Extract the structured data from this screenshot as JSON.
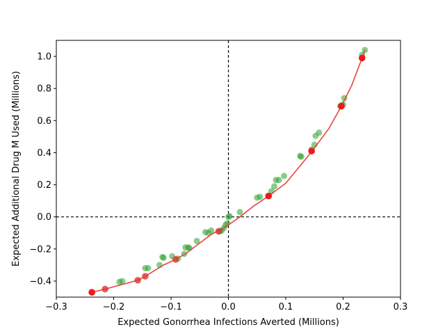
{
  "chart_data": {
    "type": "scatter",
    "title": "",
    "xlabel": "Expected Gonorrhea Infections Averted (Millions)",
    "ylabel": "Expected Additional Drug M Used (Millions)",
    "xlim": [
      -0.3,
      0.3
    ],
    "ylim": [
      -0.5,
      1.1
    ],
    "xticks": [
      -0.3,
      -0.2,
      -0.1,
      0.0,
      0.1,
      0.2,
      0.3
    ],
    "xtick_labels": [
      "−0.3",
      "−0.2",
      "−0.1",
      "0.0",
      "0.1",
      "0.2",
      "0.3"
    ],
    "yticks": [
      -0.4,
      -0.2,
      0.0,
      0.2,
      0.4,
      0.6,
      0.8,
      1.0
    ],
    "ytick_labels": [
      "−0.4",
      "−0.2",
      "0.0",
      "0.2",
      "0.4",
      "0.6",
      "0.8",
      "1.0"
    ],
    "grid": false,
    "reference_lines": {
      "x": 0.0,
      "y": 0.0,
      "style": "dashed",
      "color": "#000000"
    },
    "series": [
      {
        "type": "scatter",
        "color": "#2ca02c",
        "opacity": 0.55,
        "points": [
          [
            -0.238,
            -0.47
          ],
          [
            -0.185,
            -0.4
          ],
          [
            -0.19,
            -0.405
          ],
          [
            -0.145,
            -0.32
          ],
          [
            -0.14,
            -0.32
          ],
          [
            -0.12,
            -0.3
          ],
          [
            -0.115,
            -0.25
          ],
          [
            -0.113,
            -0.255
          ],
          [
            -0.098,
            -0.245
          ],
          [
            -0.088,
            -0.26
          ],
          [
            -0.077,
            -0.23
          ],
          [
            -0.075,
            -0.19
          ],
          [
            -0.07,
            -0.19
          ],
          [
            -0.068,
            -0.195
          ],
          [
            -0.055,
            -0.15
          ],
          [
            -0.04,
            -0.095
          ],
          [
            -0.035,
            -0.1
          ],
          [
            -0.03,
            -0.085
          ],
          [
            -0.015,
            -0.09
          ],
          [
            -0.012,
            -0.085
          ],
          [
            -0.008,
            -0.07
          ],
          [
            -0.005,
            -0.05
          ],
          [
            -0.002,
            -0.04
          ],
          [
            0.0,
            0.0
          ],
          [
            0.002,
            0.005
          ],
          [
            0.02,
            0.03
          ],
          [
            0.05,
            0.12
          ],
          [
            0.055,
            0.125
          ],
          [
            0.07,
            0.13
          ],
          [
            0.075,
            0.16
          ],
          [
            0.08,
            0.19
          ],
          [
            0.083,
            0.23
          ],
          [
            0.088,
            0.23
          ],
          [
            0.097,
            0.255
          ],
          [
            0.125,
            0.38
          ],
          [
            0.127,
            0.375
          ],
          [
            0.145,
            0.42
          ],
          [
            0.15,
            0.45
          ],
          [
            0.152,
            0.505
          ],
          [
            0.158,
            0.525
          ],
          [
            0.195,
            0.69
          ],
          [
            0.197,
            0.695
          ],
          [
            0.2,
            0.7
          ],
          [
            0.202,
            0.74
          ],
          [
            0.233,
            1.01
          ],
          [
            0.238,
            1.04
          ]
        ]
      },
      {
        "type": "line",
        "color": "#e8423f",
        "points": [
          [
            -0.238,
            -0.47
          ],
          [
            -0.215,
            -0.45
          ],
          [
            -0.158,
            -0.395
          ],
          [
            -0.145,
            -0.37
          ],
          [
            -0.113,
            -0.3
          ],
          [
            -0.092,
            -0.265
          ],
          [
            -0.075,
            -0.23
          ],
          [
            -0.06,
            -0.19
          ],
          [
            -0.045,
            -0.15
          ],
          [
            -0.03,
            -0.11
          ],
          [
            -0.02,
            -0.09
          ],
          [
            -0.01,
            -0.075
          ],
          [
            0.0,
            -0.05
          ],
          [
            0.02,
            0.0
          ],
          [
            0.045,
            0.07
          ],
          [
            0.07,
            0.13
          ],
          [
            0.1,
            0.21
          ],
          [
            0.145,
            0.405
          ],
          [
            0.175,
            0.55
          ],
          [
            0.197,
            0.69
          ],
          [
            0.215,
            0.82
          ],
          [
            0.233,
            0.99
          ],
          [
            0.238,
            1.04
          ]
        ]
      },
      {
        "type": "scatter",
        "color": "#ee1a1a",
        "opacity": 1.0,
        "points": [
          [
            -0.238,
            -0.47
          ],
          [
            0.07,
            0.13
          ],
          [
            0.145,
            0.41
          ],
          [
            0.197,
            0.69
          ],
          [
            0.233,
            0.99
          ]
        ]
      },
      {
        "type": "scatter",
        "color": "#d9362f",
        "opacity": 0.8,
        "points": [
          [
            -0.215,
            -0.45
          ],
          [
            -0.158,
            -0.395
          ],
          [
            -0.145,
            -0.37
          ],
          [
            -0.092,
            -0.265
          ],
          [
            -0.017,
            -0.09
          ]
        ]
      }
    ]
  }
}
